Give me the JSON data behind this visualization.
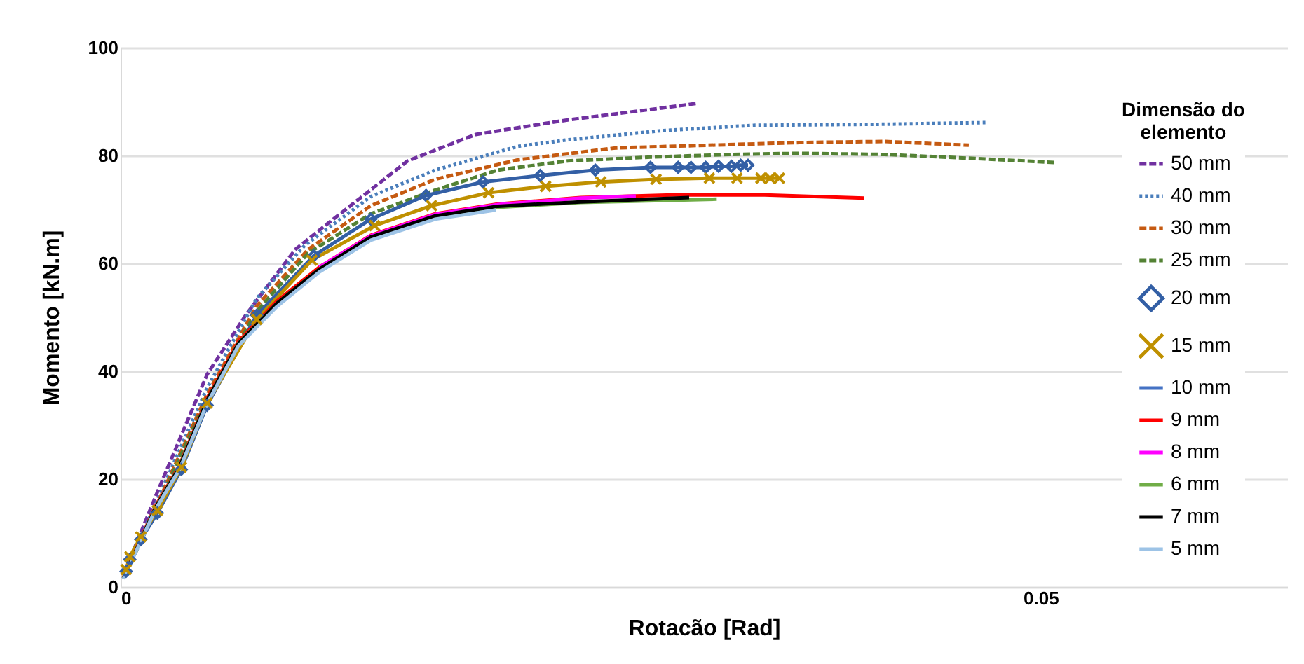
{
  "chart_data": {
    "type": "line",
    "xlabel": "Rotacão [Rad]",
    "ylabel": "Momento [kN.m]",
    "legend_title": "Dimensão do elemento",
    "xlim": [
      0,
      0.0634
    ],
    "xticks": [
      0,
      0.05
    ],
    "ylim": [
      0,
      100
    ],
    "yticks": [
      0,
      20,
      40,
      60,
      80,
      100
    ],
    "grid": "y",
    "legend": "right",
    "series": [
      {
        "name": "50 mm",
        "color": "#7030a0",
        "line_style": "dashed",
        "marker": "none",
        "x": [
          0.0003,
          0.002,
          0.0047,
          0.0068,
          0.0095,
          0.0113,
          0.0156,
          0.0193,
          0.0243,
          0.0294,
          0.0314
        ],
        "values": [
          3.4,
          17.6,
          39.4,
          50.4,
          62.6,
          67.5,
          79.0,
          83.9,
          86.6,
          88.8,
          89.7
        ]
      },
      {
        "name": "40 mm",
        "color": "#4a7ebb",
        "line_style": "dotted",
        "marker": "none",
        "x": [
          0.0003,
          0.002,
          0.0047,
          0.0074,
          0.01,
          0.0136,
          0.0171,
          0.0216,
          0.0243,
          0.0294,
          0.0344,
          0.0415,
          0.047
        ],
        "values": [
          3.2,
          16.1,
          36.9,
          53.5,
          63.3,
          72.4,
          77.3,
          81.7,
          82.9,
          84.6,
          85.6,
          85.8,
          86.1
        ]
      },
      {
        "name": "30 mm",
        "color": "#c55a11",
        "line_style": "dashed",
        "marker": "none",
        "x": [
          0.0003,
          0.002,
          0.0047,
          0.0074,
          0.0102,
          0.0136,
          0.0171,
          0.0216,
          0.0269,
          0.0319,
          0.0369,
          0.0415,
          0.0461
        ],
        "values": [
          2.9,
          15.4,
          35.7,
          52.1,
          62.6,
          70.7,
          75.6,
          79.2,
          81.4,
          81.9,
          82.4,
          82.6,
          81.9
        ]
      },
      {
        "name": "25 mm",
        "color": "#548235",
        "line_style": "dashed",
        "marker": "none",
        "x": [
          0.0003,
          0.002,
          0.0047,
          0.0074,
          0.0102,
          0.0136,
          0.0171,
          0.0205,
          0.0243,
          0.0288,
          0.0332,
          0.0369,
          0.0415,
          0.0461,
          0.0508
        ],
        "values": [
          2.7,
          14.9,
          35.0,
          51.1,
          61.9,
          69.2,
          73.6,
          77.3,
          79.0,
          79.7,
          80.2,
          80.4,
          80.2,
          79.5,
          78.7
        ]
      },
      {
        "name": "20 mm",
        "color": "#335fa5",
        "line_style": "solid",
        "marker": "diamond",
        "x": [
          0.0003,
          0.0005,
          0.0011,
          0.002,
          0.0033,
          0.0047,
          0.0074,
          0.0105,
          0.0136,
          0.0166,
          0.0197,
          0.0228,
          0.0258,
          0.0288,
          0.0303,
          0.031,
          0.0318,
          0.0325,
          0.0332,
          0.0337,
          0.0341
        ],
        "values": [
          2.9,
          5.1,
          8.8,
          13.7,
          21.8,
          33.7,
          50.4,
          61.4,
          68.2,
          72.6,
          75.1,
          76.3,
          77.3,
          77.8,
          77.8,
          77.8,
          77.8,
          78.0,
          78.0,
          78.2,
          78.2
        ]
      },
      {
        "name": "15 mm",
        "color": "#bf9000",
        "line_style": "solid",
        "marker": "cross",
        "x": [
          0.0003,
          0.0005,
          0.0011,
          0.002,
          0.0033,
          0.0047,
          0.0074,
          0.0104,
          0.0138,
          0.0169,
          0.02,
          0.0231,
          0.0261,
          0.0291,
          0.032,
          0.0335,
          0.0348,
          0.0353,
          0.0358
        ],
        "values": [
          3.2,
          5.6,
          9.3,
          14.2,
          22.2,
          34.1,
          49.6,
          60.6,
          67.0,
          70.7,
          73.1,
          74.3,
          75.1,
          75.6,
          75.8,
          75.8,
          75.8,
          75.8,
          75.8
        ]
      },
      {
        "name": "10 mm",
        "color": "#4472c4",
        "line_style": "solid",
        "marker": "none"
      },
      {
        "name": "9 mm",
        "color": "#ff0000",
        "line_style": "solid",
        "marker": "none",
        "x": [
          0.00015,
          0.0019,
          0.0032,
          0.0047,
          0.0064,
          0.0085,
          0.0108,
          0.0136,
          0.0171,
          0.0205,
          0.025,
          0.03,
          0.035,
          0.0404
        ],
        "values": [
          1.7,
          15.0,
          22.5,
          35.0,
          45.5,
          53.0,
          59.3,
          65.2,
          69.2,
          71.0,
          72.2,
          72.7,
          72.7,
          72.1
        ]
      },
      {
        "name": "8 mm",
        "color": "#ff00ff",
        "line_style": "solid",
        "marker": "none",
        "x": [
          0.0108,
          0.0136,
          0.0171,
          0.0205,
          0.025,
          0.028
        ],
        "values": [
          59.3,
          65.1,
          69.1,
          70.9,
          72.1,
          72.5
        ]
      },
      {
        "name": "6 mm",
        "color": "#70ad47",
        "line_style": "solid",
        "marker": "none",
        "x": [
          0.00015,
          0.0019,
          0.0032,
          0.0047,
          0.0064,
          0.0085,
          0.0108,
          0.0136,
          0.0171,
          0.0205,
          0.025,
          0.0324
        ],
        "values": [
          1.6,
          14.8,
          22.3,
          34.7,
          45.2,
          52.6,
          58.9,
          64.8,
          68.7,
          70.4,
          71.3,
          71.9
        ]
      },
      {
        "name": "7 mm",
        "color": "#000000",
        "line_style": "solid",
        "marker": "none",
        "x": [
          0.00015,
          0.0019,
          0.0032,
          0.0047,
          0.0064,
          0.0085,
          0.0108,
          0.0136,
          0.0171,
          0.0205,
          0.025,
          0.0309
        ],
        "values": [
          1.6,
          14.7,
          22.2,
          34.6,
          45.1,
          52.6,
          58.9,
          64.9,
          68.8,
          70.6,
          71.4,
          72.2
        ]
      },
      {
        "name": "5 mm",
        "color": "#9dc3e6",
        "line_style": "solid",
        "marker": "none",
        "x": [
          0.00015,
          0.0019,
          0.0032,
          0.0047,
          0.0064,
          0.0085,
          0.0108,
          0.0136,
          0.0171,
          0.0204
        ],
        "values": [
          1.5,
          14.4,
          21.8,
          34.0,
          44.7,
          52.0,
          58.4,
          64.3,
          68.2,
          69.9
        ]
      }
    ]
  }
}
